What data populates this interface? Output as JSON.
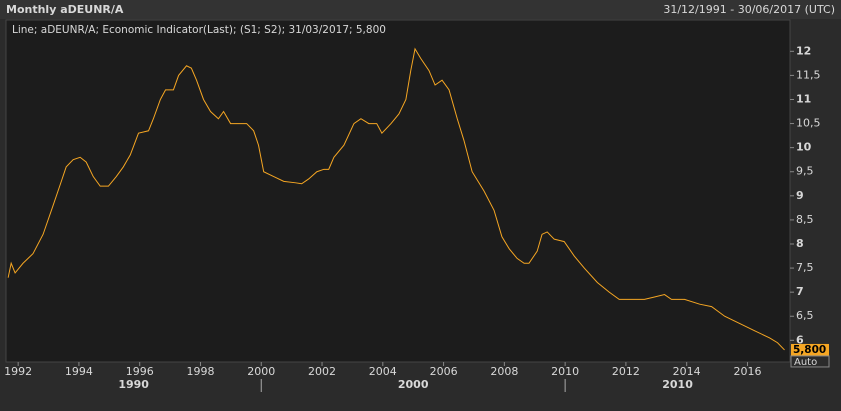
{
  "chart_data": {
    "type": "line",
    "title": "Monthly aDEUNR/A",
    "date_range": "31/12/1991 - 30/06/2017 (UTC)",
    "legend_text": "Line; aDEUNR/A; Economic Indicator(Last); (S1; S2); 31/03/2017; 5,800",
    "last_value": {
      "value": 5.8,
      "label": "5,800"
    },
    "auto_label": "Auto",
    "xlim": [
      1991.6,
      2017.4
    ],
    "xticks": [
      1992,
      1994,
      1996,
      1998,
      2000,
      2002,
      2004,
      2006,
      2008,
      2010,
      2012,
      2014,
      2016
    ],
    "decades": [
      1990,
      2000,
      2010
    ],
    "ylim": [
      5.55,
      12.65
    ],
    "yticks": [
      {
        "value": 6,
        "label": "6"
      },
      {
        "value": 6.5,
        "label": "6,5"
      },
      {
        "value": 7,
        "label": "7"
      },
      {
        "value": 7.5,
        "label": "7,5"
      },
      {
        "value": 8,
        "label": "8"
      },
      {
        "value": 8.5,
        "label": "8,5"
      },
      {
        "value": 9,
        "label": "9"
      },
      {
        "value": 9.5,
        "label": "9,5"
      },
      {
        "value": 10,
        "label": "10"
      },
      {
        "value": 10.5,
        "label": "10,5"
      },
      {
        "value": 11,
        "label": "11"
      },
      {
        "value": 11.5,
        "label": "11,5"
      },
      {
        "value": 12,
        "label": "12"
      }
    ],
    "series": [
      {
        "name": "aDEUNR/A",
        "color": "#f5a623",
        "x": [
          1991.67,
          1991.77,
          1991.9,
          1992.16,
          1992.49,
          1992.82,
          1993.15,
          1993.42,
          1993.58,
          1993.81,
          1994.04,
          1994.24,
          1994.47,
          1994.7,
          1994.97,
          1995.23,
          1995.46,
          1995.69,
          1995.96,
          1996.29,
          1996.45,
          1996.68,
          1996.85,
          1997.11,
          1997.28,
          1997.54,
          1997.7,
          1997.87,
          1998.1,
          1998.33,
          1998.59,
          1998.76,
          1998.99,
          1999.52,
          1999.75,
          1999.91,
          2000.08,
          2000.41,
          2000.74,
          2001.13,
          2001.33,
          2001.56,
          2001.83,
          2002.06,
          2002.22,
          2002.39,
          2002.72,
          2003.05,
          2003.28,
          2003.54,
          2003.8,
          2003.97,
          2004.27,
          2004.53,
          2004.76,
          2004.92,
          2005.06,
          2005.25,
          2005.52,
          2005.72,
          2005.95,
          2006.18,
          2006.45,
          2006.67,
          2006.94,
          2007.33,
          2007.66,
          2007.92,
          2008.16,
          2008.42,
          2008.65,
          2008.81,
          2009.08,
          2009.24,
          2009.41,
          2009.64,
          2009.97,
          2010.3,
          2010.63,
          2011.06,
          2011.45,
          2011.78,
          2012.11,
          2012.61,
          2012.94,
          2013.27,
          2013.5,
          2013.93,
          2014.43,
          2014.82,
          2015.25,
          2015.74,
          2016.23,
          2016.73,
          2016.99,
          2017.22
        ],
        "values": [
          7.3,
          7.6,
          7.4,
          7.6,
          7.8,
          8.2,
          8.8,
          9.3,
          9.6,
          9.75,
          9.8,
          9.7,
          9.4,
          9.2,
          9.2,
          9.4,
          9.6,
          9.85,
          10.3,
          10.35,
          10.6,
          11.0,
          11.2,
          11.2,
          11.5,
          11.7,
          11.65,
          11.4,
          11.0,
          10.75,
          10.6,
          10.75,
          10.5,
          10.5,
          10.35,
          10.05,
          9.5,
          9.4,
          9.3,
          9.27,
          9.25,
          9.35,
          9.5,
          9.55,
          9.55,
          9.8,
          10.05,
          10.5,
          10.6,
          10.5,
          10.5,
          10.3,
          10.5,
          10.7,
          11.0,
          11.6,
          12.05,
          11.85,
          11.6,
          11.3,
          11.4,
          11.2,
          10.6,
          10.15,
          9.5,
          9.1,
          8.7,
          8.15,
          7.9,
          7.7,
          7.6,
          7.6,
          7.85,
          8.2,
          8.25,
          8.1,
          8.05,
          7.75,
          7.5,
          7.2,
          7.0,
          6.85,
          6.85,
          6.85,
          6.9,
          6.95,
          6.85,
          6.85,
          6.75,
          6.7,
          6.5,
          6.35,
          6.2,
          6.05,
          5.95,
          5.8
        ]
      }
    ]
  }
}
